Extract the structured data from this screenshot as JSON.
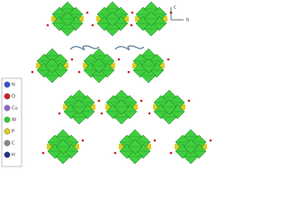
{
  "axes": {
    "up": "c",
    "right": "b"
  },
  "legend": {
    "items": [
      {
        "label": "N",
        "color": "#3355cc"
      },
      {
        "label": "O",
        "color": "#cc2222"
      },
      {
        "label": "Cu",
        "color": "#9966cc"
      },
      {
        "label": "W",
        "color": "#33cc33"
      },
      {
        "label": "P",
        "color": "#ddcc22"
      },
      {
        "label": "C",
        "color": "#888888"
      },
      {
        "label": "H",
        "color": "#223388"
      }
    ]
  }
}
